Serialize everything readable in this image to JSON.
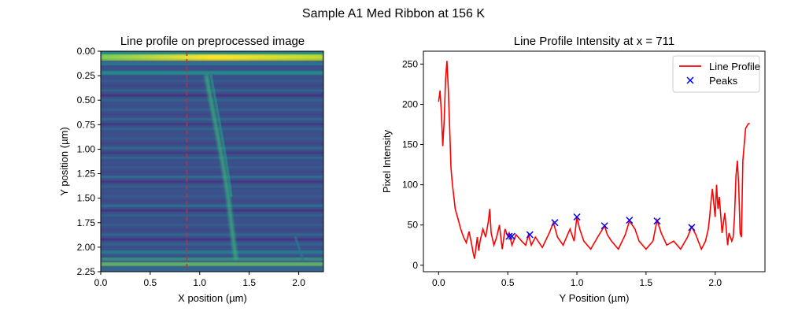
{
  "figure": {
    "suptitle": "Sample A1 Med Ribbon at 156 K"
  },
  "chart_data": [
    {
      "type": "heatmap",
      "title": "Line profile on preprocessed image",
      "xlabel": "X position (µm)",
      "ylabel": "Y position (µm)",
      "xlim": [
        0.0,
        2.25
      ],
      "ylim": [
        2.25,
        0.0
      ],
      "xticks": [
        "0.0",
        "0.5",
        "1.0",
        "1.5",
        "2.0"
      ],
      "xtick_values": [
        0.0,
        0.5,
        1.0,
        1.5,
        2.0
      ],
      "yticks": [
        "0.00",
        "0.25",
        "0.50",
        "0.75",
        "1.00",
        "1.25",
        "1.50",
        "1.75",
        "2.00",
        "2.25"
      ],
      "ytick_values": [
        0.0,
        0.25,
        0.5,
        0.75,
        1.0,
        1.25,
        1.5,
        1.75,
        2.0,
        2.25
      ],
      "colormap": "viridis",
      "profile_line_x": 0.87,
      "profile_line_color": "#d62728",
      "profile_line_style": "dashed",
      "features": {
        "bright_bands_y": [
          0.05,
          0.22,
          2.17
        ],
        "vertical_streak": "curved from x≈1.05 at top to x≈1.35 at bottom"
      }
    },
    {
      "type": "line",
      "title": "Line Profile Intensity at x = 711",
      "xlabel": "Y Position (µm)",
      "ylabel": "Pixel Intensity",
      "xlim": [
        -0.11,
        2.36
      ],
      "ylim": [
        -8,
        266
      ],
      "xticks": [
        "0.0",
        "0.5",
        "1.0",
        "1.5",
        "2.0"
      ],
      "xtick_values": [
        0.0,
        0.5,
        1.0,
        1.5,
        2.0
      ],
      "yticks": [
        "0",
        "50",
        "100",
        "150",
        "200",
        "250"
      ],
      "ytick_values": [
        0,
        50,
        100,
        150,
        200,
        250
      ],
      "legend_position": "top-right",
      "series": [
        {
          "name": "Line Profile",
          "color": "#ff0000",
          "x": [
            0.0,
            0.01,
            0.02,
            0.03,
            0.04,
            0.05,
            0.06,
            0.07,
            0.08,
            0.09,
            0.1,
            0.11,
            0.12,
            0.14,
            0.16,
            0.18,
            0.2,
            0.22,
            0.24,
            0.25,
            0.26,
            0.27,
            0.28,
            0.29,
            0.3,
            0.32,
            0.34,
            0.36,
            0.37,
            0.38,
            0.4,
            0.42,
            0.44,
            0.46,
            0.48,
            0.5,
            0.51,
            0.53,
            0.56,
            0.6,
            0.63,
            0.65,
            0.67,
            0.7,
            0.75,
            0.8,
            0.83,
            0.86,
            0.9,
            0.95,
            0.98,
            1.0,
            1.02,
            1.05,
            1.1,
            1.15,
            1.2,
            1.22,
            1.25,
            1.3,
            1.35,
            1.38,
            1.42,
            1.45,
            1.5,
            1.55,
            1.58,
            1.61,
            1.65,
            1.7,
            1.75,
            1.8,
            1.83,
            1.86,
            1.9,
            1.93,
            1.95,
            1.96,
            1.97,
            1.98,
            2.0,
            2.01,
            2.02,
            2.03,
            2.05,
            2.07,
            2.09,
            2.1,
            2.12,
            2.13,
            2.14,
            2.15,
            2.16,
            2.17,
            2.18,
            2.19,
            2.2,
            2.22,
            2.24,
            2.25
          ],
          "y": [
            203,
            217,
            190,
            148,
            180,
            230,
            254,
            220,
            170,
            120,
            100,
            85,
            70,
            58,
            45,
            35,
            28,
            42,
            25,
            15,
            8,
            22,
            35,
            18,
            30,
            45,
            35,
            55,
            70,
            40,
            25,
            35,
            50,
            20,
            45,
            36,
            40,
            25,
            38,
            30,
            25,
            38,
            25,
            35,
            22,
            40,
            53,
            35,
            25,
            45,
            30,
            60,
            45,
            30,
            20,
            35,
            49,
            38,
            30,
            20,
            38,
            55,
            45,
            30,
            20,
            30,
            56,
            40,
            25,
            30,
            20,
            35,
            48,
            38,
            20,
            30,
            45,
            60,
            80,
            95,
            60,
            100,
            70,
            85,
            40,
            65,
            25,
            40,
            30,
            35,
            60,
            110,
            130,
            100,
            40,
            35,
            130,
            170,
            176,
            176
          ]
        },
        {
          "name": "Peaks",
          "color": "#0000ff",
          "marker": "x",
          "x": [
            0.51,
            0.53,
            0.66,
            0.84,
            1.0,
            1.2,
            1.38,
            1.58,
            1.83
          ],
          "y": [
            36,
            36,
            38,
            53,
            60,
            49,
            56,
            55,
            47
          ]
        }
      ]
    }
  ]
}
